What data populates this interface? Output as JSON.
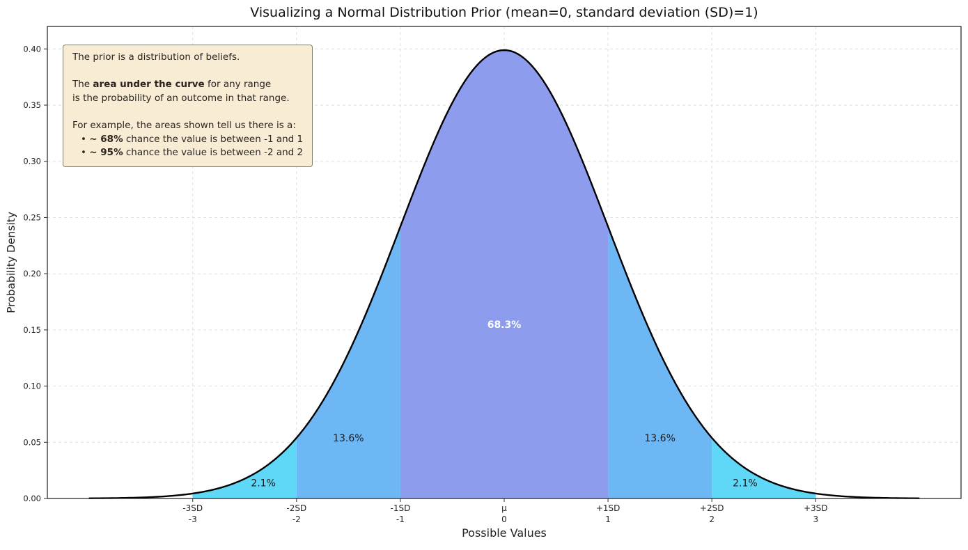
{
  "chart_data": {
    "type": "area",
    "title": "Visualizing a Normal Distribution Prior (mean=0, standard deviation (SD)=1)",
    "xlabel": "Possible Values",
    "ylabel": "Probability Density",
    "distribution": {
      "name": "normal",
      "mean": 0,
      "sd": 1
    },
    "curve_range": [
      -4,
      4
    ],
    "xlim": [
      -4.4,
      4.4
    ],
    "ylim": [
      0,
      0.42
    ],
    "grid": true,
    "legend": "none",
    "curve_color": "#000000",
    "yticks": [
      {
        "value": 0.0,
        "label": "0.00"
      },
      {
        "value": 0.05,
        "label": "0.05"
      },
      {
        "value": 0.1,
        "label": "0.10"
      },
      {
        "value": 0.15,
        "label": "0.15"
      },
      {
        "value": 0.2,
        "label": "0.20"
      },
      {
        "value": 0.25,
        "label": "0.25"
      },
      {
        "value": 0.3,
        "label": "0.30"
      },
      {
        "value": 0.35,
        "label": "0.35"
      },
      {
        "value": 0.4,
        "label": "0.40"
      }
    ],
    "xticks": [
      {
        "value": -3,
        "sd_label": "-3SD",
        "value_label": "-3"
      },
      {
        "value": -2,
        "sd_label": "-2SD",
        "value_label": "-2"
      },
      {
        "value": -1,
        "sd_label": "-1SD",
        "value_label": "-1"
      },
      {
        "value": 0,
        "sd_label": "μ",
        "value_label": "0"
      },
      {
        "value": 1,
        "sd_label": "+1SD",
        "value_label": "1"
      },
      {
        "value": 2,
        "sd_label": "+2SD",
        "value_label": "2"
      },
      {
        "value": 3,
        "sd_label": "+3SD",
        "value_label": "3"
      }
    ],
    "regions": [
      {
        "from": -1,
        "to": 1,
        "color": "#8d9cec",
        "label": "68.3%",
        "label_x": 0,
        "label_y": 0.155,
        "label_color": "#ffffff",
        "label_bold": true
      },
      {
        "from": -2,
        "to": -1,
        "color": "#6db7f5",
        "label": "13.6%",
        "label_x": -1.5,
        "label_y": 0.054,
        "label_color": "#1a1a1a",
        "label_bold": false
      },
      {
        "from": 1,
        "to": 2,
        "color": "#6db7f5",
        "label": "13.6%",
        "label_x": 1.5,
        "label_y": 0.054,
        "label_color": "#1a1a1a",
        "label_bold": false
      },
      {
        "from": -3,
        "to": -2,
        "color": "#5fd8f7",
        "label": "2.1%",
        "label_x": -2.32,
        "label_y": 0.014,
        "label_color": "#1a1a1a",
        "label_bold": false
      },
      {
        "from": 2,
        "to": 3,
        "color": "#5fd8f7",
        "label": "2.1%",
        "label_x": 2.32,
        "label_y": 0.014,
        "label_color": "#1a1a1a",
        "label_bold": false
      }
    ],
    "annotation": {
      "bg": "#f8ecd4",
      "border": "#7d7d6e",
      "lines": [
        [
          {
            "t": "The prior is a distribution of beliefs.",
            "b": false
          }
        ],
        [],
        [
          {
            "t": "The ",
            "b": false
          },
          {
            "t": "area under the curve",
            "b": true
          },
          {
            "t": " for any range",
            "b": false
          }
        ],
        [
          {
            "t": "is the probability of an outcome in that range.",
            "b": false
          }
        ],
        [],
        [
          {
            "t": "For example, the areas shown tell us there is a:",
            "b": false
          }
        ],
        [
          {
            "t": "•  ",
            "b": false,
            "bullet": true
          },
          {
            "t": "~ 68%",
            "b": true
          },
          {
            "t": " chance the value is between -1 and 1",
            "b": false
          }
        ],
        [
          {
            "t": "•  ",
            "b": false,
            "bullet": true
          },
          {
            "t": "~ 95%",
            "b": true
          },
          {
            "t": " chance the value is between -2 and 2",
            "b": false
          }
        ]
      ]
    }
  }
}
